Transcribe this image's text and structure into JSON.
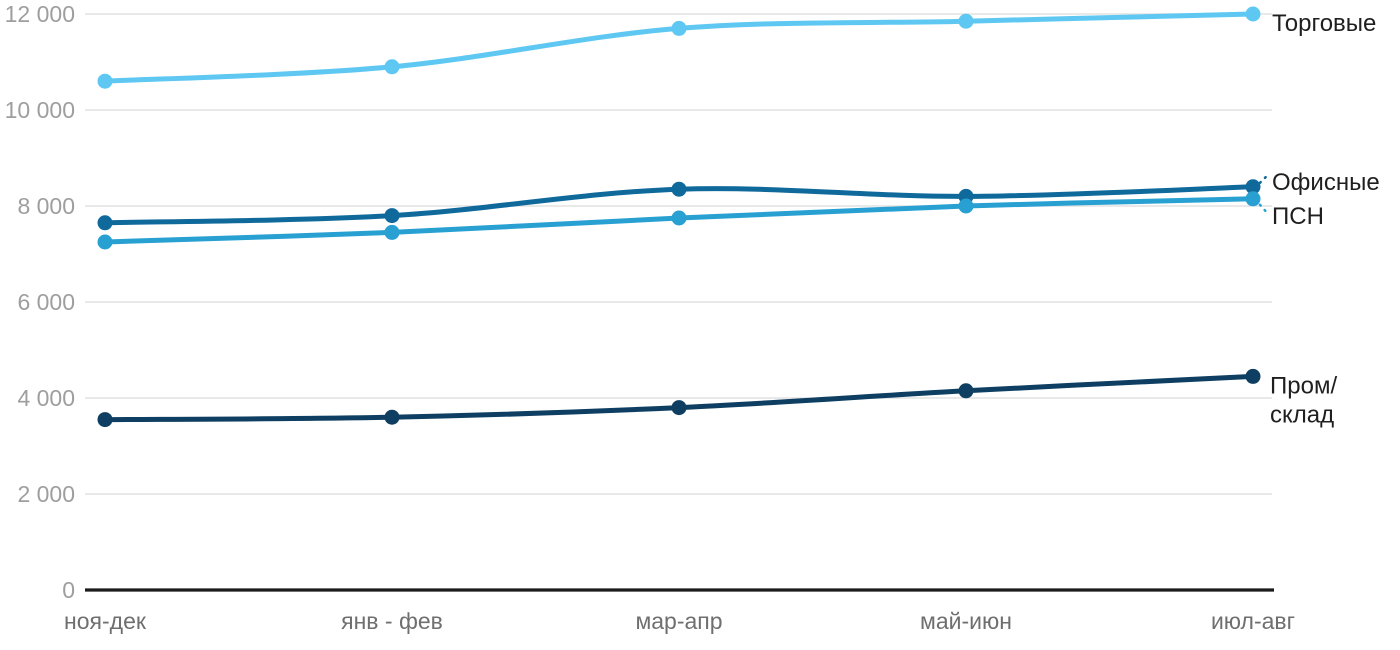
{
  "chart_data": {
    "type": "line",
    "title": "",
    "xlabel": "",
    "ylabel": "",
    "categories": [
      "ноя-дек",
      "янв - фев",
      "мар-апр",
      "май-июн",
      "июл-авг"
    ],
    "y_ticks": [
      0,
      2000,
      4000,
      6000,
      8000,
      10000,
      12000
    ],
    "y_tick_labels": [
      "0",
      "2 000",
      "4 000",
      "6 000",
      "8 000",
      "10 000",
      "12 000"
    ],
    "ylim": [
      0,
      12000
    ],
    "grid": "horizontal-only",
    "legend_position": "labels-at-right-edge",
    "curve": "smooth",
    "series": [
      {
        "name": "Торговые",
        "label_lines": [
          "Торговые"
        ],
        "color": "#5fc8f2",
        "values": [
          10600,
          10900,
          11700,
          11850,
          12000
        ]
      },
      {
        "name": "Офисные",
        "label_lines": [
          "Офисные"
        ],
        "color": "#0f699b",
        "values": [
          7650,
          7800,
          8350,
          8200,
          8400
        ]
      },
      {
        "name": "ПСН",
        "label_lines": [
          "ПСН"
        ],
        "color": "#28a0d2",
        "values": [
          7250,
          7450,
          7750,
          8000,
          8150
        ]
      },
      {
        "name": "Пром/склад",
        "label_lines": [
          "Пром/",
          "склад"
        ],
        "color": "#0e3e61",
        "values": [
          3550,
          3600,
          3800,
          4150,
          4450
        ]
      }
    ],
    "colors": {
      "background": "#ffffff",
      "gridline": "#e6e6e6",
      "axis_line": "#1b1b1b",
      "y_tick_text": "#9e9e9e",
      "x_tick_text": "#6f6f6f",
      "series_label_text": "#1f1f1f"
    }
  }
}
